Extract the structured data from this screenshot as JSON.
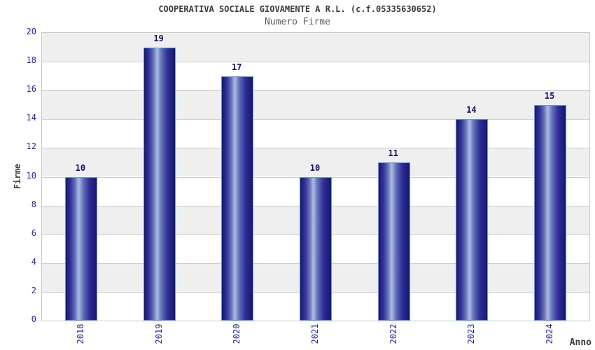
{
  "header": {
    "title": "COOPERATIVA SOCIALE GIOVAMENTE A R.L. (c.f.05335630652)",
    "subtitle": "Numero Firme"
  },
  "chart_data": {
    "type": "bar",
    "title": "COOPERATIVA SOCIALE GIOVAMENTE A R.L. (c.f.05335630652)",
    "subtitle": "Numero Firme",
    "categories": [
      "2018",
      "2019",
      "2020",
      "2021",
      "2022",
      "2023",
      "2024"
    ],
    "values": [
      10,
      19,
      17,
      10,
      11,
      14,
      15
    ],
    "value_labels": [
      "10",
      "19",
      "17",
      "10",
      "11",
      "14",
      "15"
    ],
    "xlabel": "Anno",
    "ylabel": "Firme",
    "ylim": [
      0,
      20
    ],
    "ytick_step": 2,
    "ytick_labels": [
      "0",
      "2",
      "4",
      "6",
      "8",
      "10",
      "12",
      "14",
      "16",
      "18",
      "20"
    ],
    "grid": true,
    "legend": "none",
    "band_pattern": "alternating horizontal bands of 2 units, white and light gray, white at bottom"
  },
  "colors": {
    "bar_dark": "#17176f",
    "bar_mid": "#6272b6",
    "bar_light": "#aebce4",
    "bar_border": "#5d9de2",
    "axis_text": "#2222cc",
    "value_text": "#10106e",
    "title_text": "#3a3a3a",
    "subtitle_text": "#5e5e5e",
    "band_gray": "#efefef",
    "grid_line": "#cdcdcd",
    "plot_border": "#c9c9c9",
    "label_text": "#3c3c3c"
  }
}
